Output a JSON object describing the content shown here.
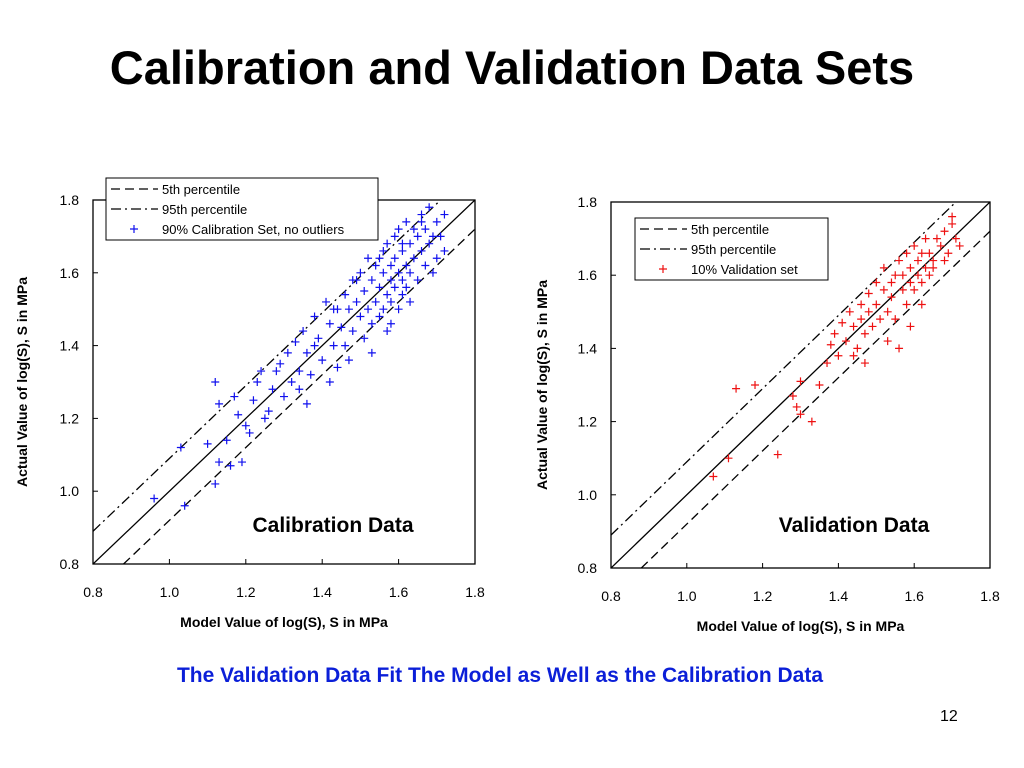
{
  "slide": {
    "title": "Calibration and Validation Data Sets",
    "caption": "The Validation Data Fit The Model as Well as the Calibration Data",
    "page_number": "12",
    "caption_color": "#0b1fd8"
  },
  "chart_data": [
    {
      "type": "scatter",
      "title": "Calibration Data",
      "xlabel": "Model Value of log(S), S in MPa",
      "ylabel": "Actual Value of log(S), S in MPa",
      "xlim": [
        0.8,
        1.8
      ],
      "ylim": [
        0.8,
        1.8
      ],
      "xticks": [
        "0.8",
        "1.0",
        "1.2",
        "1.4",
        "1.6",
        "1.8"
      ],
      "yticks": [
        "0.8",
        "1.0",
        "1.2",
        "1.4",
        "1.6",
        "1.8"
      ],
      "grid": false,
      "legend_position": "top-left",
      "legend": [
        {
          "label": "5th percentile",
          "style": "dashed"
        },
        {
          "label": "95th percentile",
          "style": "dash-dot"
        },
        {
          "label": "90% Calibration Set, no outliers",
          "style": "marker-plus"
        }
      ],
      "lines": [
        {
          "style": "solid",
          "x": [
            0.8,
            1.8
          ],
          "y": [
            0.8,
            1.8
          ]
        },
        {
          "style": "dashed",
          "x": [
            0.8,
            1.8
          ],
          "y": [
            0.72,
            1.72
          ]
        },
        {
          "style": "dash-dot",
          "x": [
            0.8,
            1.8
          ],
          "y": [
            0.89,
            1.89
          ]
        }
      ],
      "series": [
        {
          "name": "90% Calibration Set, no outliers",
          "color": "#1010ee",
          "marker": "plus",
          "x": [
            0.96,
            1.04,
            1.03,
            1.1,
            1.12,
            1.13,
            1.12,
            1.16,
            1.18,
            1.2,
            1.22,
            1.23,
            1.25,
            1.27,
            1.28,
            1.3,
            1.31,
            1.32,
            1.33,
            1.34,
            1.35,
            1.36,
            1.37,
            1.38,
            1.39,
            1.4,
            1.41,
            1.42,
            1.43,
            1.44,
            1.44,
            1.45,
            1.46,
            1.46,
            1.47,
            1.48,
            1.48,
            1.49,
            1.5,
            1.5,
            1.51,
            1.51,
            1.52,
            1.52,
            1.53,
            1.53,
            1.54,
            1.54,
            1.55,
            1.55,
            1.56,
            1.56,
            1.56,
            1.57,
            1.57,
            1.57,
            1.58,
            1.58,
            1.58,
            1.59,
            1.59,
            1.59,
            1.6,
            1.6,
            1.6,
            1.61,
            1.61,
            1.61,
            1.62,
            1.62,
            1.62,
            1.63,
            1.63,
            1.64,
            1.64,
            1.65,
            1.65,
            1.66,
            1.66,
            1.67,
            1.67,
            1.68,
            1.68,
            1.69,
            1.7,
            1.7,
            1.71,
            1.72,
            1.72,
            1.15,
            1.17,
            1.21,
            1.26,
            1.29,
            1.34,
            1.38,
            1.42,
            1.47,
            1.53,
            1.58,
            1.63,
            1.69,
            1.13,
            1.19,
            1.24,
            1.36,
            1.43,
            1.49,
            1.55,
            1.61,
            1.66
          ],
          "y": [
            0.98,
            0.96,
            1.12,
            1.13,
            1.3,
            1.08,
            1.02,
            1.07,
            1.21,
            1.18,
            1.25,
            1.3,
            1.2,
            1.28,
            1.33,
            1.26,
            1.38,
            1.3,
            1.41,
            1.33,
            1.44,
            1.38,
            1.32,
            1.48,
            1.42,
            1.36,
            1.52,
            1.46,
            1.4,
            1.5,
            1.34,
            1.45,
            1.54,
            1.4,
            1.5,
            1.44,
            1.58,
            1.52,
            1.48,
            1.6,
            1.42,
            1.55,
            1.5,
            1.64,
            1.46,
            1.58,
            1.52,
            1.62,
            1.48,
            1.56,
            1.66,
            1.5,
            1.6,
            1.54,
            1.68,
            1.44,
            1.58,
            1.62,
            1.52,
            1.7,
            1.56,
            1.64,
            1.6,
            1.5,
            1.72,
            1.58,
            1.66,
            1.54,
            1.62,
            1.74,
            1.56,
            1.68,
            1.6,
            1.64,
            1.72,
            1.58,
            1.7,
            1.66,
            1.76,
            1.62,
            1.72,
            1.68,
            1.78,
            1.7,
            1.64,
            1.74,
            1.7,
            1.76,
            1.66,
            1.14,
            1.26,
            1.16,
            1.22,
            1.35,
            1.28,
            1.4,
            1.3,
            1.36,
            1.38,
            1.46,
            1.52,
            1.6,
            1.24,
            1.08,
            1.33,
            1.24,
            1.5,
            1.58,
            1.64,
            1.68,
            1.74
          ]
        }
      ]
    },
    {
      "type": "scatter",
      "title": "Validation Data",
      "xlabel": "Model Value of log(S), S in MPa",
      "ylabel": "Actual Value of log(S), S in MPa",
      "xlim": [
        0.8,
        1.8
      ],
      "ylim": [
        0.8,
        1.8
      ],
      "xticks": [
        "0.8",
        "1.0",
        "1.2",
        "1.4",
        "1.6",
        "1.8"
      ],
      "yticks": [
        "0.8",
        "1.0",
        "1.2",
        "1.4",
        "1.6",
        "1.8"
      ],
      "grid": false,
      "legend_position": "top-left",
      "legend": [
        {
          "label": "5th percentile",
          "style": "dashed"
        },
        {
          "label": "95th percentile",
          "style": "dash-dot"
        },
        {
          "label": "10% Validation set",
          "style": "marker-plus"
        }
      ],
      "lines": [
        {
          "style": "solid",
          "x": [
            0.8,
            1.8
          ],
          "y": [
            0.8,
            1.8
          ]
        },
        {
          "style": "dashed",
          "x": [
            0.8,
            1.8
          ],
          "y": [
            0.72,
            1.72
          ]
        },
        {
          "style": "dash-dot",
          "x": [
            0.8,
            1.8
          ],
          "y": [
            0.89,
            1.89
          ]
        }
      ],
      "series": [
        {
          "name": "10% Validation set",
          "color": "#ee1111",
          "marker": "plus",
          "x": [
            1.07,
            1.11,
            1.13,
            1.18,
            1.24,
            1.28,
            1.29,
            1.3,
            1.3,
            1.33,
            1.35,
            1.37,
            1.38,
            1.39,
            1.4,
            1.41,
            1.42,
            1.43,
            1.44,
            1.45,
            1.46,
            1.46,
            1.47,
            1.48,
            1.48,
            1.49,
            1.5,
            1.5,
            1.51,
            1.52,
            1.52,
            1.53,
            1.54,
            1.54,
            1.55,
            1.55,
            1.56,
            1.57,
            1.57,
            1.58,
            1.58,
            1.59,
            1.59,
            1.6,
            1.6,
            1.61,
            1.61,
            1.62,
            1.62,
            1.63,
            1.63,
            1.64,
            1.64,
            1.65,
            1.66,
            1.67,
            1.68,
            1.69,
            1.7,
            1.71,
            1.72,
            1.56,
            1.59,
            1.62,
            1.44,
            1.47,
            1.53,
            1.65,
            1.68,
            1.7
          ],
          "y": [
            1.05,
            1.1,
            1.29,
            1.3,
            1.11,
            1.27,
            1.24,
            1.31,
            1.22,
            1.2,
            1.3,
            1.36,
            1.41,
            1.44,
            1.38,
            1.47,
            1.42,
            1.5,
            1.46,
            1.4,
            1.52,
            1.48,
            1.44,
            1.55,
            1.5,
            1.46,
            1.58,
            1.52,
            1.48,
            1.56,
            1.62,
            1.5,
            1.58,
            1.54,
            1.6,
            1.48,
            1.64,
            1.56,
            1.6,
            1.52,
            1.66,
            1.58,
            1.62,
            1.56,
            1.68,
            1.6,
            1.64,
            1.58,
            1.66,
            1.62,
            1.7,
            1.6,
            1.66,
            1.64,
            1.7,
            1.68,
            1.72,
            1.66,
            1.74,
            1.7,
            1.68,
            1.4,
            1.46,
            1.52,
            1.38,
            1.36,
            1.42,
            1.62,
            1.64,
            1.76
          ]
        }
      ]
    }
  ]
}
